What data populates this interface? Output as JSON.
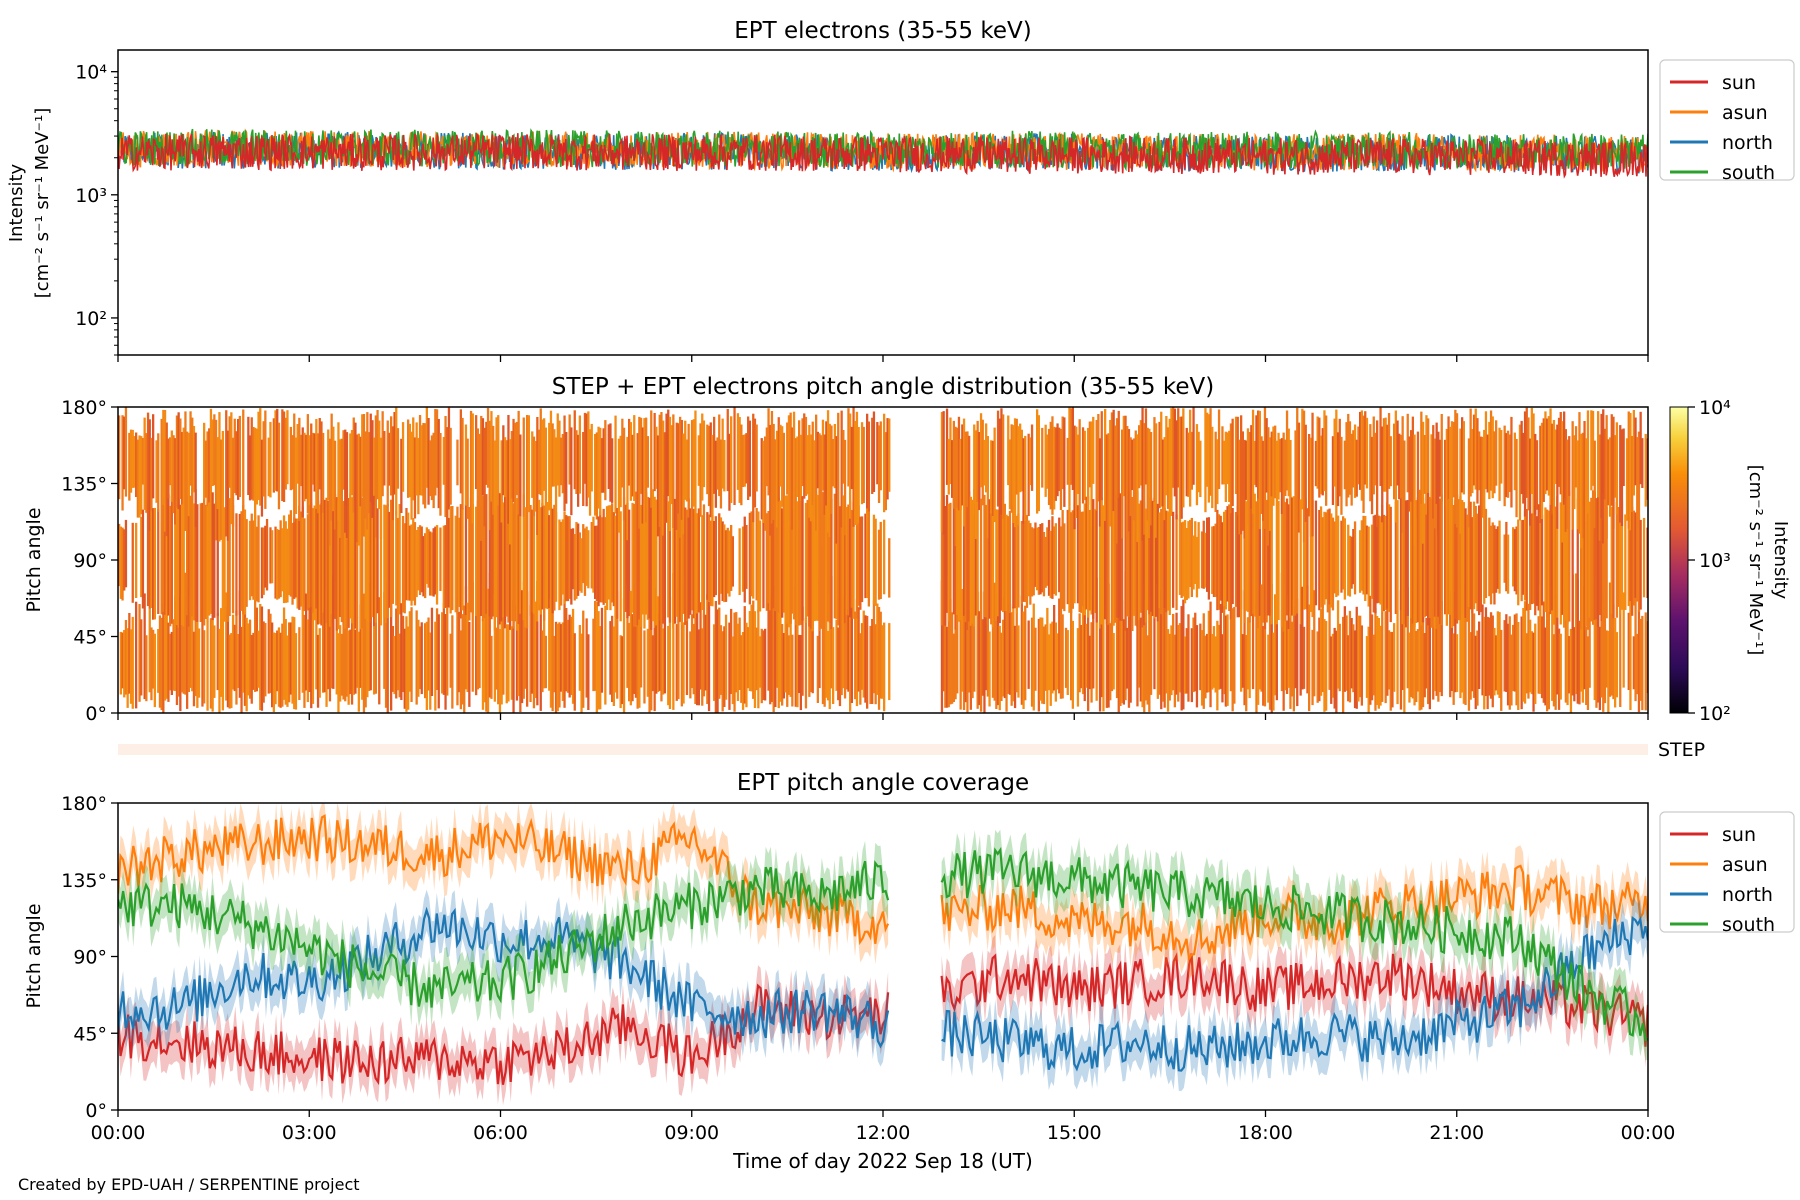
{
  "figure": {
    "footer": "Created by EPD-UAH / SERPENTINE project",
    "xlabel": "Time of day 2022 Sep 18 (UT)",
    "x_tick_labels": [
      "00:00",
      "03:00",
      "06:00",
      "09:00",
      "12:00",
      "15:00",
      "18:00",
      "21:00",
      "00:00"
    ],
    "step_strip_label": "STEP",
    "series_colors": {
      "sun": "#d62728",
      "asun": "#ff7f0e",
      "north": "#1f77b4",
      "south": "#2ca02c"
    }
  },
  "chart_data": [
    {
      "type": "line",
      "title": "EPT electrons (35-55 keV)",
      "ylabel_line1": "Intensity",
      "ylabel_line2": "[cm⁻² s⁻¹ sr⁻¹ MeV⁻¹]",
      "yscale": "log",
      "ylim": [
        50,
        15000
      ],
      "y_ticks": [
        {
          "value": 100,
          "label": "10²"
        },
        {
          "value": 1000,
          "label": "10³"
        },
        {
          "value": 10000,
          "label": "10⁴"
        }
      ],
      "x_hours": [
        0,
        2,
        4,
        6,
        8,
        10,
        12,
        14,
        16,
        18,
        20,
        22,
        24
      ],
      "series": [
        {
          "name": "sun",
          "values": [
            2200,
            2250,
            2200,
            2250,
            2200,
            2200,
            2150,
            2100,
            2100,
            2050,
            2050,
            2000,
            1950
          ]
        },
        {
          "name": "asun",
          "values": [
            2350,
            2400,
            2350,
            2350,
            2300,
            2300,
            2250,
            2250,
            2250,
            2200,
            2250,
            2200,
            2150
          ]
        },
        {
          "name": "north",
          "values": [
            2300,
            2300,
            2300,
            2250,
            2250,
            2250,
            2200,
            2250,
            2200,
            2150,
            2200,
            2150,
            2100
          ]
        },
        {
          "name": "south",
          "values": [
            2400,
            2450,
            2400,
            2400,
            2350,
            2350,
            2300,
            2350,
            2300,
            2300,
            2300,
            2250,
            2250
          ]
        }
      ],
      "legend": "outside-right"
    },
    {
      "type": "heatmap",
      "title": "STEP + EPT electrons pitch angle distribution (35-55 keV)",
      "ylabel": "Pitch angle",
      "ylim": [
        0,
        180
      ],
      "y_tick_labels": [
        "0°",
        "45°",
        "90°",
        "135°",
        "180°"
      ],
      "colorbar_label_line1": "Intensity",
      "colorbar_label_line2": "[cm⁻² s⁻¹ sr⁻¹ MeV⁻¹]",
      "colorbar_scale": "log",
      "colorbar_range": [
        100,
        10000
      ],
      "colorbar_ticks": [
        "10²",
        "10³",
        "10⁴"
      ],
      "typical_intensity": 2200,
      "data_gap_hours": [
        12.1,
        12.9
      ]
    },
    {
      "type": "line",
      "title": "EPT pitch angle coverage",
      "ylabel": "Pitch angle",
      "ylim": [
        0,
        180
      ],
      "y_tick_labels": [
        "0°",
        "45°",
        "90°",
        "135°",
        "180°"
      ],
      "x_hours": [
        0,
        1,
        2,
        3,
        4,
        5,
        6,
        7,
        8,
        9,
        10,
        11,
        12,
        13,
        14,
        15,
        16,
        17,
        18,
        19,
        20,
        21,
        22,
        23,
        24
      ],
      "data_gap_hours": [
        12.1,
        12.9
      ],
      "series": [
        {
          "name": "sun",
          "values": [
            45,
            40,
            35,
            30,
            28,
            30,
            28,
            35,
            50,
            30,
            60,
            55,
            55,
            null,
            80,
            70,
            75,
            80,
            70,
            75,
            80,
            70,
            65,
            60,
            50
          ]
        },
        {
          "name": "asun",
          "values": [
            140,
            150,
            155,
            160,
            155,
            150,
            160,
            150,
            140,
            160,
            120,
            115,
            110,
            null,
            120,
            110,
            110,
            100,
            115,
            110,
            120,
            125,
            130,
            120,
            120
          ]
        },
        {
          "name": "north",
          "values": [
            60,
            60,
            80,
            75,
            90,
            110,
            100,
            100,
            85,
            60,
            55,
            60,
            50,
            null,
            40,
            35,
            40,
            35,
            40,
            45,
            40,
            50,
            60,
            90,
            110
          ]
        },
        {
          "name": "south",
          "values": [
            120,
            120,
            110,
            95,
            80,
            70,
            75,
            90,
            110,
            120,
            130,
            125,
            135,
            null,
            140,
            135,
            130,
            125,
            120,
            115,
            110,
            105,
            100,
            70,
            50
          ]
        }
      ],
      "band_halfwidth_deg": 12,
      "legend": "outside-right"
    }
  ]
}
